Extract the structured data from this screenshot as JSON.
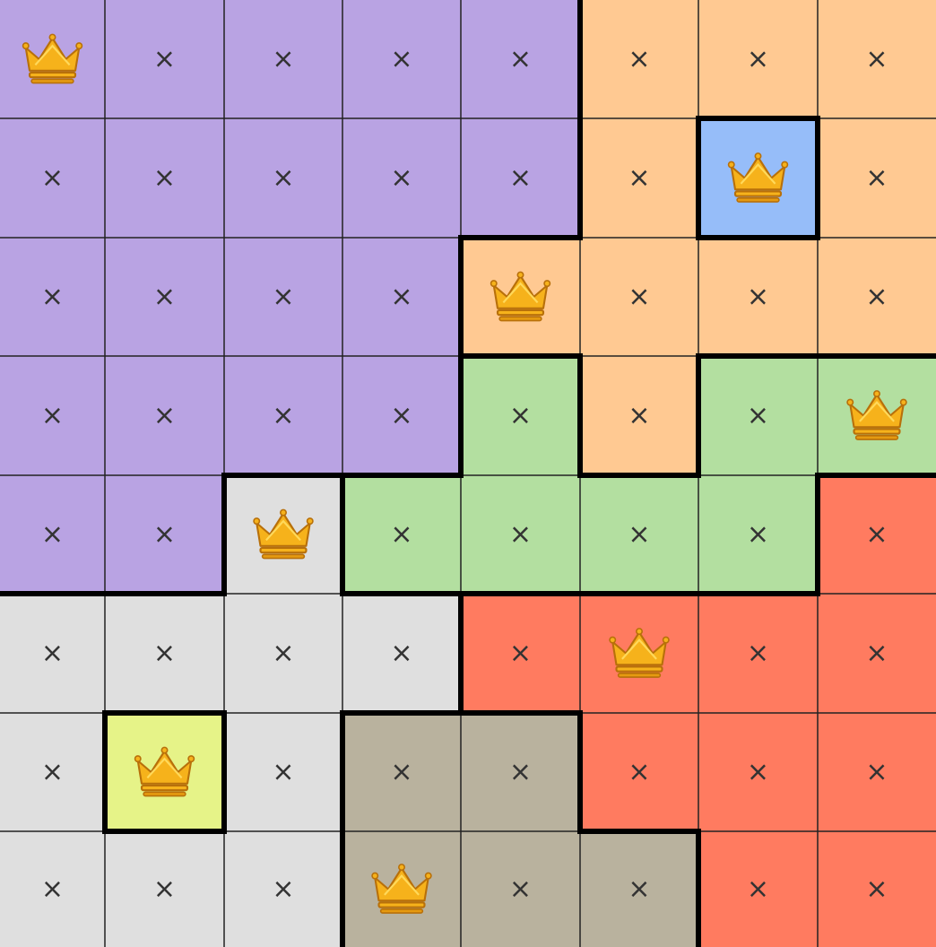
{
  "board": {
    "rows": [
      [
        null,
        "×",
        "×",
        "×",
        "×",
        "×",
        "×",
        "×"
      ],
      [
        "×",
        "×",
        "×",
        "×",
        "×",
        "×",
        null,
        "×"
      ],
      [
        "×",
        "×",
        "×",
        "×",
        null,
        "×",
        "×",
        "×"
      ],
      [
        "×",
        "×",
        "×",
        "×",
        "×",
        "×",
        "×",
        null
      ],
      [
        "×",
        "×",
        null,
        "×",
        "×",
        "×",
        "×",
        "×"
      ],
      [
        "×",
        "×",
        "×",
        "×",
        "×",
        null,
        "×",
        "×"
      ],
      [
        "×",
        null,
        "×",
        "×",
        "×",
        "×",
        "×",
        "×"
      ],
      [
        "×",
        "×",
        "×",
        null,
        "×",
        "×",
        "×",
        "×"
      ]
    ]
  }
}
